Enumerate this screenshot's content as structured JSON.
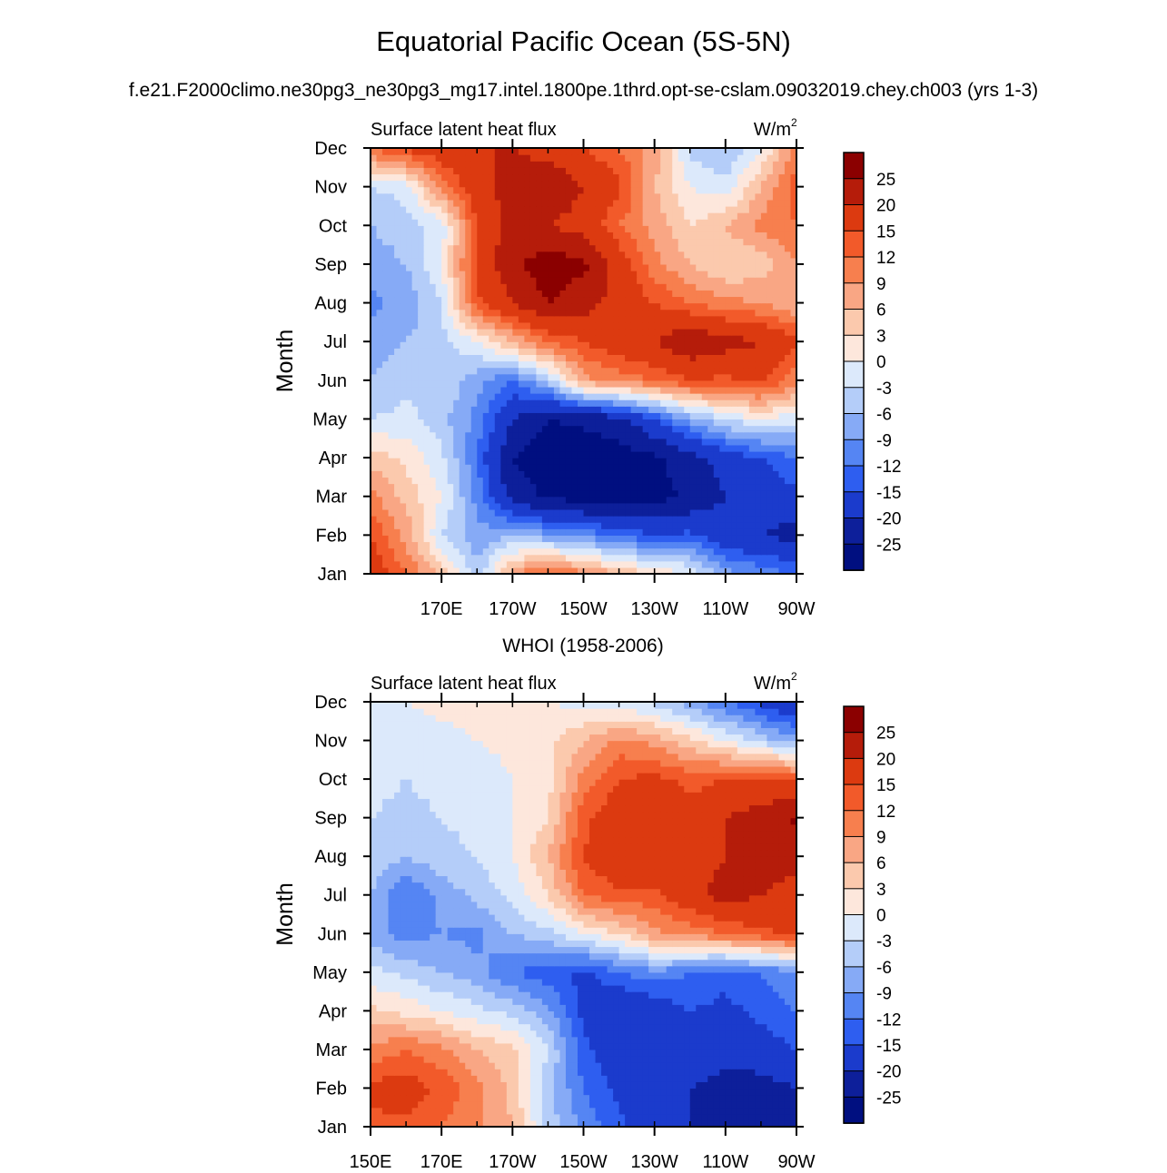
{
  "title": "Equatorial Pacific Ocean (5S-5N)",
  "subtitle": "f.e21.F2000climo.ne30pg3_ne30pg3_mg17.intel.1800pe.1thrd.opt-se-cslam.09032019.chey.ch003 (yrs 1-3)",
  "colorbar": {
    "labels": [
      "25",
      "20",
      "15",
      "12",
      "9",
      "6",
      "3",
      "0",
      "-3",
      "-6",
      "-9",
      "-12",
      "-15",
      "-20",
      "-25"
    ],
    "colors": [
      "#8b0000",
      "#b51c0a",
      "#dc3a10",
      "#f25a2a",
      "#f77f4e",
      "#f9a684",
      "#fbc9ad",
      "#fde7dc",
      "#dce9fb",
      "#b4cdf9",
      "#86aaf6",
      "#5585f3",
      "#2e5ef0",
      "#1b3bcc",
      "#0d1f9a",
      "#000f80"
    ]
  },
  "chart_data": [
    {
      "type": "heatmap",
      "title": "",
      "left_label": "Surface latent heat flux",
      "right_label": "W/m",
      "right_label_sup": "2",
      "ylabel": "Month",
      "y_ticks": [
        "Jan",
        "Feb",
        "Mar",
        "Apr",
        "May",
        "Jun",
        "Jul",
        "Aug",
        "Sep",
        "Oct",
        "Nov",
        "Dec"
      ],
      "x_ticks": [
        "170E",
        "170W",
        "150W",
        "130W",
        "110W",
        "90W"
      ],
      "x_tick_lon": [
        170,
        190,
        210,
        230,
        250,
        270
      ],
      "xlim": [
        150,
        270
      ],
      "lon": [
        150,
        160,
        170,
        180,
        190,
        200,
        210,
        220,
        230,
        240,
        250,
        260,
        270
      ],
      "values": [
        [
          18,
          12,
          5,
          -5,
          8,
          14,
          10,
          6,
          3,
          0,
          -8,
          -10,
          -12
        ],
        [
          15,
          8,
          -3,
          -8,
          -6,
          -8,
          -10,
          -12,
          -15,
          -14,
          -18,
          -20,
          -22
        ],
        [
          10,
          5,
          0,
          -10,
          -22,
          -26,
          -27,
          -28,
          -27,
          -24,
          -20,
          -18,
          -16
        ],
        [
          5,
          2,
          -2,
          -12,
          -25,
          -28,
          -28,
          -27,
          -26,
          -22,
          -18,
          -15,
          -12
        ],
        [
          -3,
          -2,
          -5,
          -10,
          -20,
          -25,
          -24,
          -22,
          -15,
          -8,
          -3,
          0,
          -2
        ],
        [
          -6,
          -4,
          -3,
          -8,
          -12,
          -5,
          8,
          10,
          12,
          15,
          14,
          16,
          10
        ],
        [
          -8,
          -6,
          -4,
          0,
          6,
          12,
          15,
          18,
          20,
          24,
          22,
          20,
          16
        ],
        [
          -10,
          -8,
          -3,
          14,
          20,
          25,
          22,
          18,
          15,
          12,
          10,
          9,
          6
        ],
        [
          -8,
          -6,
          0,
          16,
          24,
          28,
          26,
          18,
          10,
          6,
          3,
          4,
          9
        ],
        [
          -6,
          -4,
          -2,
          15,
          22,
          20,
          18,
          12,
          8,
          3,
          6,
          10,
          12
        ],
        [
          -3,
          -2,
          10,
          18,
          22,
          24,
          20,
          16,
          6,
          0,
          -2,
          6,
          14
        ],
        [
          12,
          16,
          18,
          20,
          20,
          18,
          15,
          12,
          8,
          -4,
          -6,
          0,
          10
        ]
      ]
    },
    {
      "type": "heatmap",
      "title": "WHOI (1958-2006)",
      "left_label": "Surface latent heat flux",
      "right_label": "W/m",
      "right_label_sup": "2",
      "ylabel": "Month",
      "y_ticks": [
        "Jan",
        "Feb",
        "Mar",
        "Apr",
        "May",
        "Jun",
        "Jul",
        "Aug",
        "Sep",
        "Oct",
        "Nov",
        "Dec"
      ],
      "x_ticks": [
        "150E",
        "170E",
        "170W",
        "150W",
        "130W",
        "110W",
        "90W"
      ],
      "x_tick_lon": [
        150,
        170,
        190,
        210,
        230,
        250,
        270
      ],
      "xlim": [
        150,
        270
      ],
      "lon": [
        150,
        160,
        170,
        180,
        190,
        200,
        210,
        220,
        230,
        240,
        250,
        260,
        270
      ],
      "values": [
        [
          14,
          14,
          12,
          10,
          6,
          -4,
          -10,
          -14,
          -18,
          -20,
          -22,
          -24,
          -25
        ],
        [
          16,
          17,
          14,
          10,
          5,
          -5,
          -12,
          -16,
          -18,
          -20,
          -22,
          -22,
          -20
        ],
        [
          10,
          12,
          10,
          6,
          4,
          -3,
          -14,
          -18,
          -20,
          -16,
          -18,
          -17,
          -15
        ],
        [
          4,
          2,
          0,
          -2,
          -4,
          -8,
          -16,
          -20,
          -18,
          -15,
          -16,
          -14,
          -12
        ],
        [
          -2,
          -4,
          -6,
          -8,
          -12,
          -14,
          -16,
          -12,
          -10,
          -12,
          -14,
          -12,
          -10
        ],
        [
          -8,
          -10,
          -9,
          -10,
          -6,
          -4,
          0,
          3,
          8,
          10,
          12,
          14,
          16
        ],
        [
          -6,
          -12,
          -8,
          -5,
          -2,
          3,
          12,
          14,
          14,
          18,
          22,
          20,
          18
        ],
        [
          -4,
          -6,
          -4,
          -3,
          0,
          6,
          15,
          19,
          20,
          18,
          20,
          22,
          22
        ],
        [
          -3,
          -4,
          -3,
          -2,
          0,
          3,
          14,
          18,
          18,
          16,
          20,
          22,
          26
        ],
        [
          -2,
          -3,
          -2,
          -2,
          0,
          2,
          10,
          15,
          16,
          14,
          15,
          16,
          14
        ],
        [
          -2,
          -2,
          -1,
          0,
          1,
          2,
          6,
          10,
          8,
          4,
          0,
          -4,
          -8
        ],
        [
          -1,
          0,
          1,
          1,
          2,
          0,
          -1,
          -2,
          -4,
          -8,
          -12,
          -16,
          -20
        ]
      ]
    }
  ]
}
